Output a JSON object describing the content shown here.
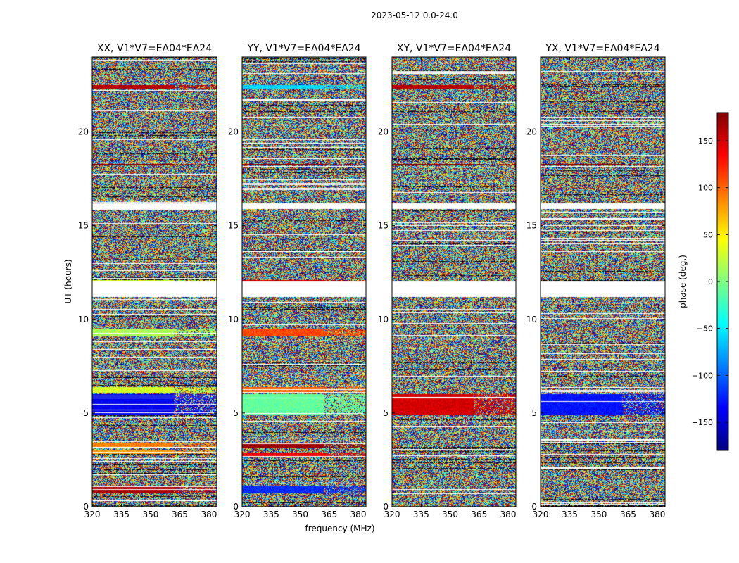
{
  "figure": {
    "suptitle": "2023-05-12 0.0-24.0",
    "xlabel": "frequency (MHz)",
    "ylabel": "UT (hours)"
  },
  "colorbar": {
    "label": "phase (deg.)",
    "range": [
      -180,
      180
    ],
    "ticks": [
      150,
      100,
      50,
      0,
      -50,
      -100,
      -150
    ],
    "tick_labels": [
      "150",
      "100",
      "50",
      "0",
      "−50",
      "−100",
      "−150"
    ],
    "colormap": "jet"
  },
  "chart_data": [
    {
      "type": "heatmap",
      "title": "XX, V1*V7=EA04*EA24",
      "x_ticks": [
        "320",
        "335",
        "350",
        "365",
        "380"
      ],
      "x_tick_values": [
        320,
        335,
        350,
        365,
        380
      ],
      "y_ticks": [
        "0",
        "5",
        "10",
        "15",
        "20"
      ],
      "y_tick_values": [
        0,
        5,
        10,
        15,
        20
      ],
      "xlim": [
        320,
        384
      ],
      "ylim": [
        0,
        24
      ],
      "z_range": [
        -180,
        180
      ],
      "z_label": "phase (deg.)",
      "structured_bands": [
        {
          "y": [
            0.7,
            1.1
          ],
          "phase": 165
        },
        {
          "y": [
            2.8,
            3.0
          ],
          "phase": 80
        },
        {
          "y": [
            3.2,
            3.4
          ],
          "phase": 90
        },
        {
          "y": [
            4.9,
            6.0
          ],
          "phase": -140
        },
        {
          "y": [
            6.1,
            6.4
          ],
          "phase": 30
        },
        {
          "y": [
            9.1,
            9.5
          ],
          "phase": 15
        },
        {
          "y": [
            11.9,
            12.1
          ],
          "phase": 30
        },
        {
          "y": [
            18.2,
            18.3
          ],
          "phase": 180
        },
        {
          "y": [
            22.3,
            22.5
          ],
          "phase": 160
        }
      ],
      "blank_bands": [
        [
          11.2,
          12.0
        ],
        [
          15.9,
          16.2
        ]
      ]
    },
    {
      "type": "heatmap",
      "title": "YY, V1*V7=EA04*EA24",
      "x_ticks": [
        "320",
        "335",
        "350",
        "365",
        "380"
      ],
      "x_tick_values": [
        320,
        335,
        350,
        365,
        380
      ],
      "y_ticks": [
        "0",
        "5",
        "10",
        "15",
        "20"
      ],
      "y_tick_values": [
        0,
        5,
        10,
        15,
        20
      ],
      "xlim": [
        320,
        384
      ],
      "ylim": [
        0,
        24
      ],
      "z_range": [
        -180,
        180
      ],
      "z_label": "phase (deg.)",
      "structured_bands": [
        {
          "y": [
            0.7,
            1.1
          ],
          "phase": -120
        },
        {
          "y": [
            2.7,
            2.9
          ],
          "phase": 140
        },
        {
          "y": [
            3.1,
            3.4
          ],
          "phase": 170
        },
        {
          "y": [
            4.9,
            6.0
          ],
          "phase": -10
        },
        {
          "y": [
            6.1,
            6.4
          ],
          "phase": 100
        },
        {
          "y": [
            9.1,
            9.5
          ],
          "phase": 110
        },
        {
          "y": [
            11.8,
            12.1
          ],
          "phase": 150
        },
        {
          "y": [
            18.2,
            18.3
          ],
          "phase": 180
        },
        {
          "y": [
            22.3,
            22.5
          ],
          "phase": -60
        }
      ],
      "blank_bands": [
        [
          11.2,
          12.0
        ],
        [
          15.9,
          16.2
        ]
      ]
    },
    {
      "type": "heatmap",
      "title": "XY, V1*V7=EA04*EA24",
      "x_ticks": [
        "320",
        "335",
        "350",
        "365",
        "380"
      ],
      "x_tick_values": [
        320,
        335,
        350,
        365,
        380
      ],
      "y_ticks": [
        "0",
        "5",
        "10",
        "15",
        "20"
      ],
      "y_tick_values": [
        0,
        5,
        10,
        15,
        20
      ],
      "xlim": [
        320,
        384
      ],
      "ylim": [
        0,
        24
      ],
      "z_range": [
        -180,
        180
      ],
      "z_label": "phase (deg.)",
      "structured_bands": [
        {
          "y": [
            4.9,
            6.0
          ],
          "phase": 150
        },
        {
          "y": [
            18.2,
            18.3
          ],
          "phase": 180
        },
        {
          "y": [
            22.3,
            22.5
          ],
          "phase": 160
        }
      ],
      "blank_bands": [
        [
          11.2,
          12.0
        ],
        [
          15.9,
          16.2
        ]
      ]
    },
    {
      "type": "heatmap",
      "title": "YX, V1*V7=EA04*EA24",
      "x_ticks": [
        "320",
        "335",
        "350",
        "365",
        "380"
      ],
      "x_tick_values": [
        320,
        335,
        350,
        365,
        380
      ],
      "y_ticks": [
        "0",
        "5",
        "10",
        "15",
        "20"
      ],
      "y_tick_values": [
        0,
        5,
        10,
        15,
        20
      ],
      "xlim": [
        320,
        384
      ],
      "ylim": [
        0,
        24
      ],
      "z_range": [
        -180,
        180
      ],
      "z_label": "phase (deg.)",
      "structured_bands": [
        {
          "y": [
            4.9,
            6.0
          ],
          "phase": -130
        },
        {
          "y": [
            18.2,
            18.3
          ],
          "phase": 180
        }
      ],
      "blank_bands": [
        [
          11.2,
          12.0
        ],
        [
          15.9,
          16.2
        ]
      ]
    }
  ]
}
